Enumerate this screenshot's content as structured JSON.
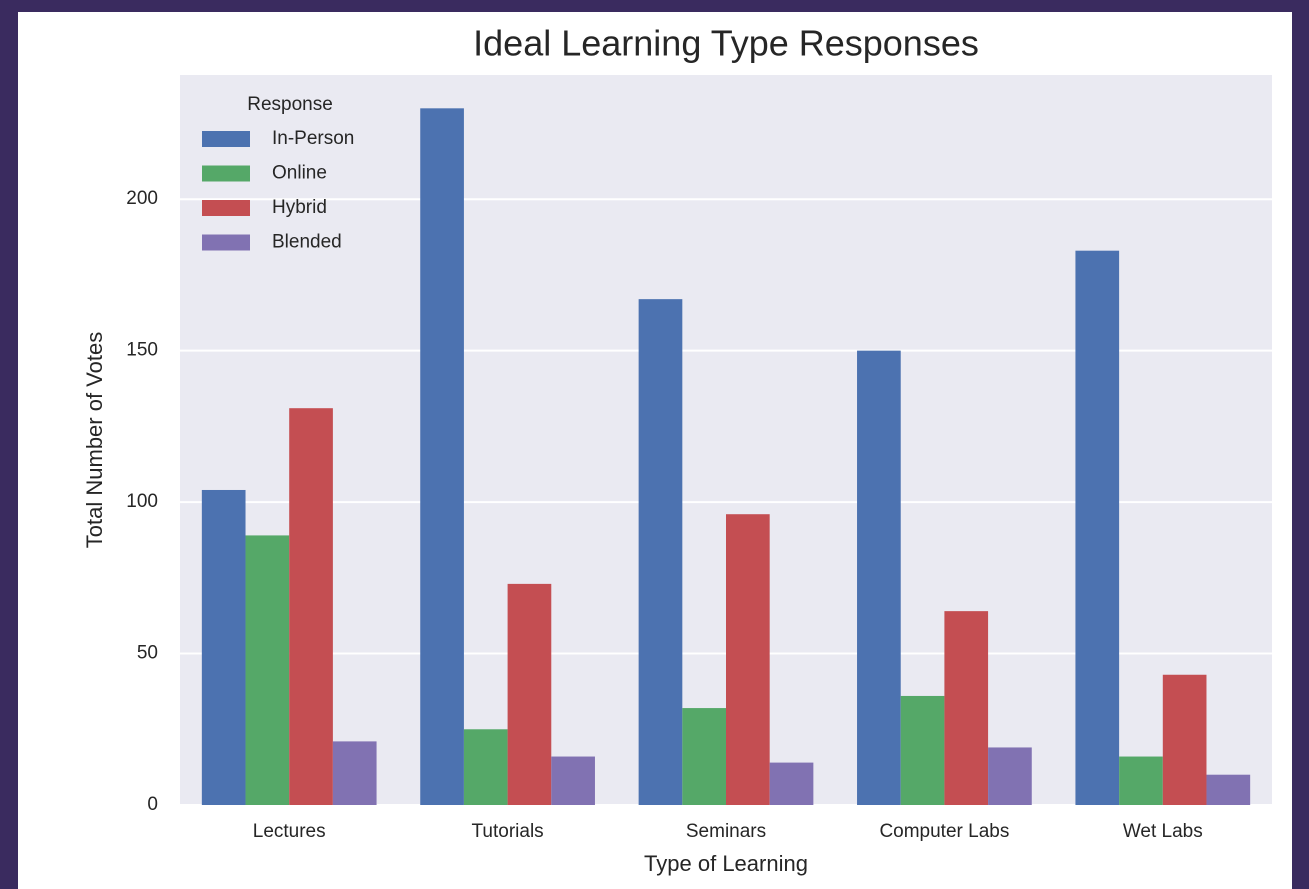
{
  "chart_data": {
    "type": "bar",
    "title": "Ideal Learning Type Responses",
    "x_label": "Type of Learning",
    "y_label": "Total Number of Votes",
    "categories": [
      "Lectures",
      "Tutorials",
      "Seminars",
      "Computer Labs",
      "Wet Labs"
    ],
    "legend_title": "Response",
    "legend": "upper left",
    "grid": true,
    "series": [
      {
        "name": "In-Person",
        "color": "#4c72b0",
        "values": [
          104,
          230,
          167,
          150,
          183
        ]
      },
      {
        "name": "Online",
        "color": "#55a868",
        "values": [
          89,
          25,
          32,
          36,
          16
        ]
      },
      {
        "name": "Hybrid",
        "color": "#c44e52",
        "values": [
          131,
          73,
          96,
          64,
          43
        ]
      },
      {
        "name": "Blended",
        "color": "#8172b2",
        "values": [
          21,
          16,
          14,
          19,
          10
        ]
      }
    ],
    "ylim": [
      0,
      241
    ],
    "yticks": [
      0,
      50,
      100,
      150,
      200
    ]
  }
}
